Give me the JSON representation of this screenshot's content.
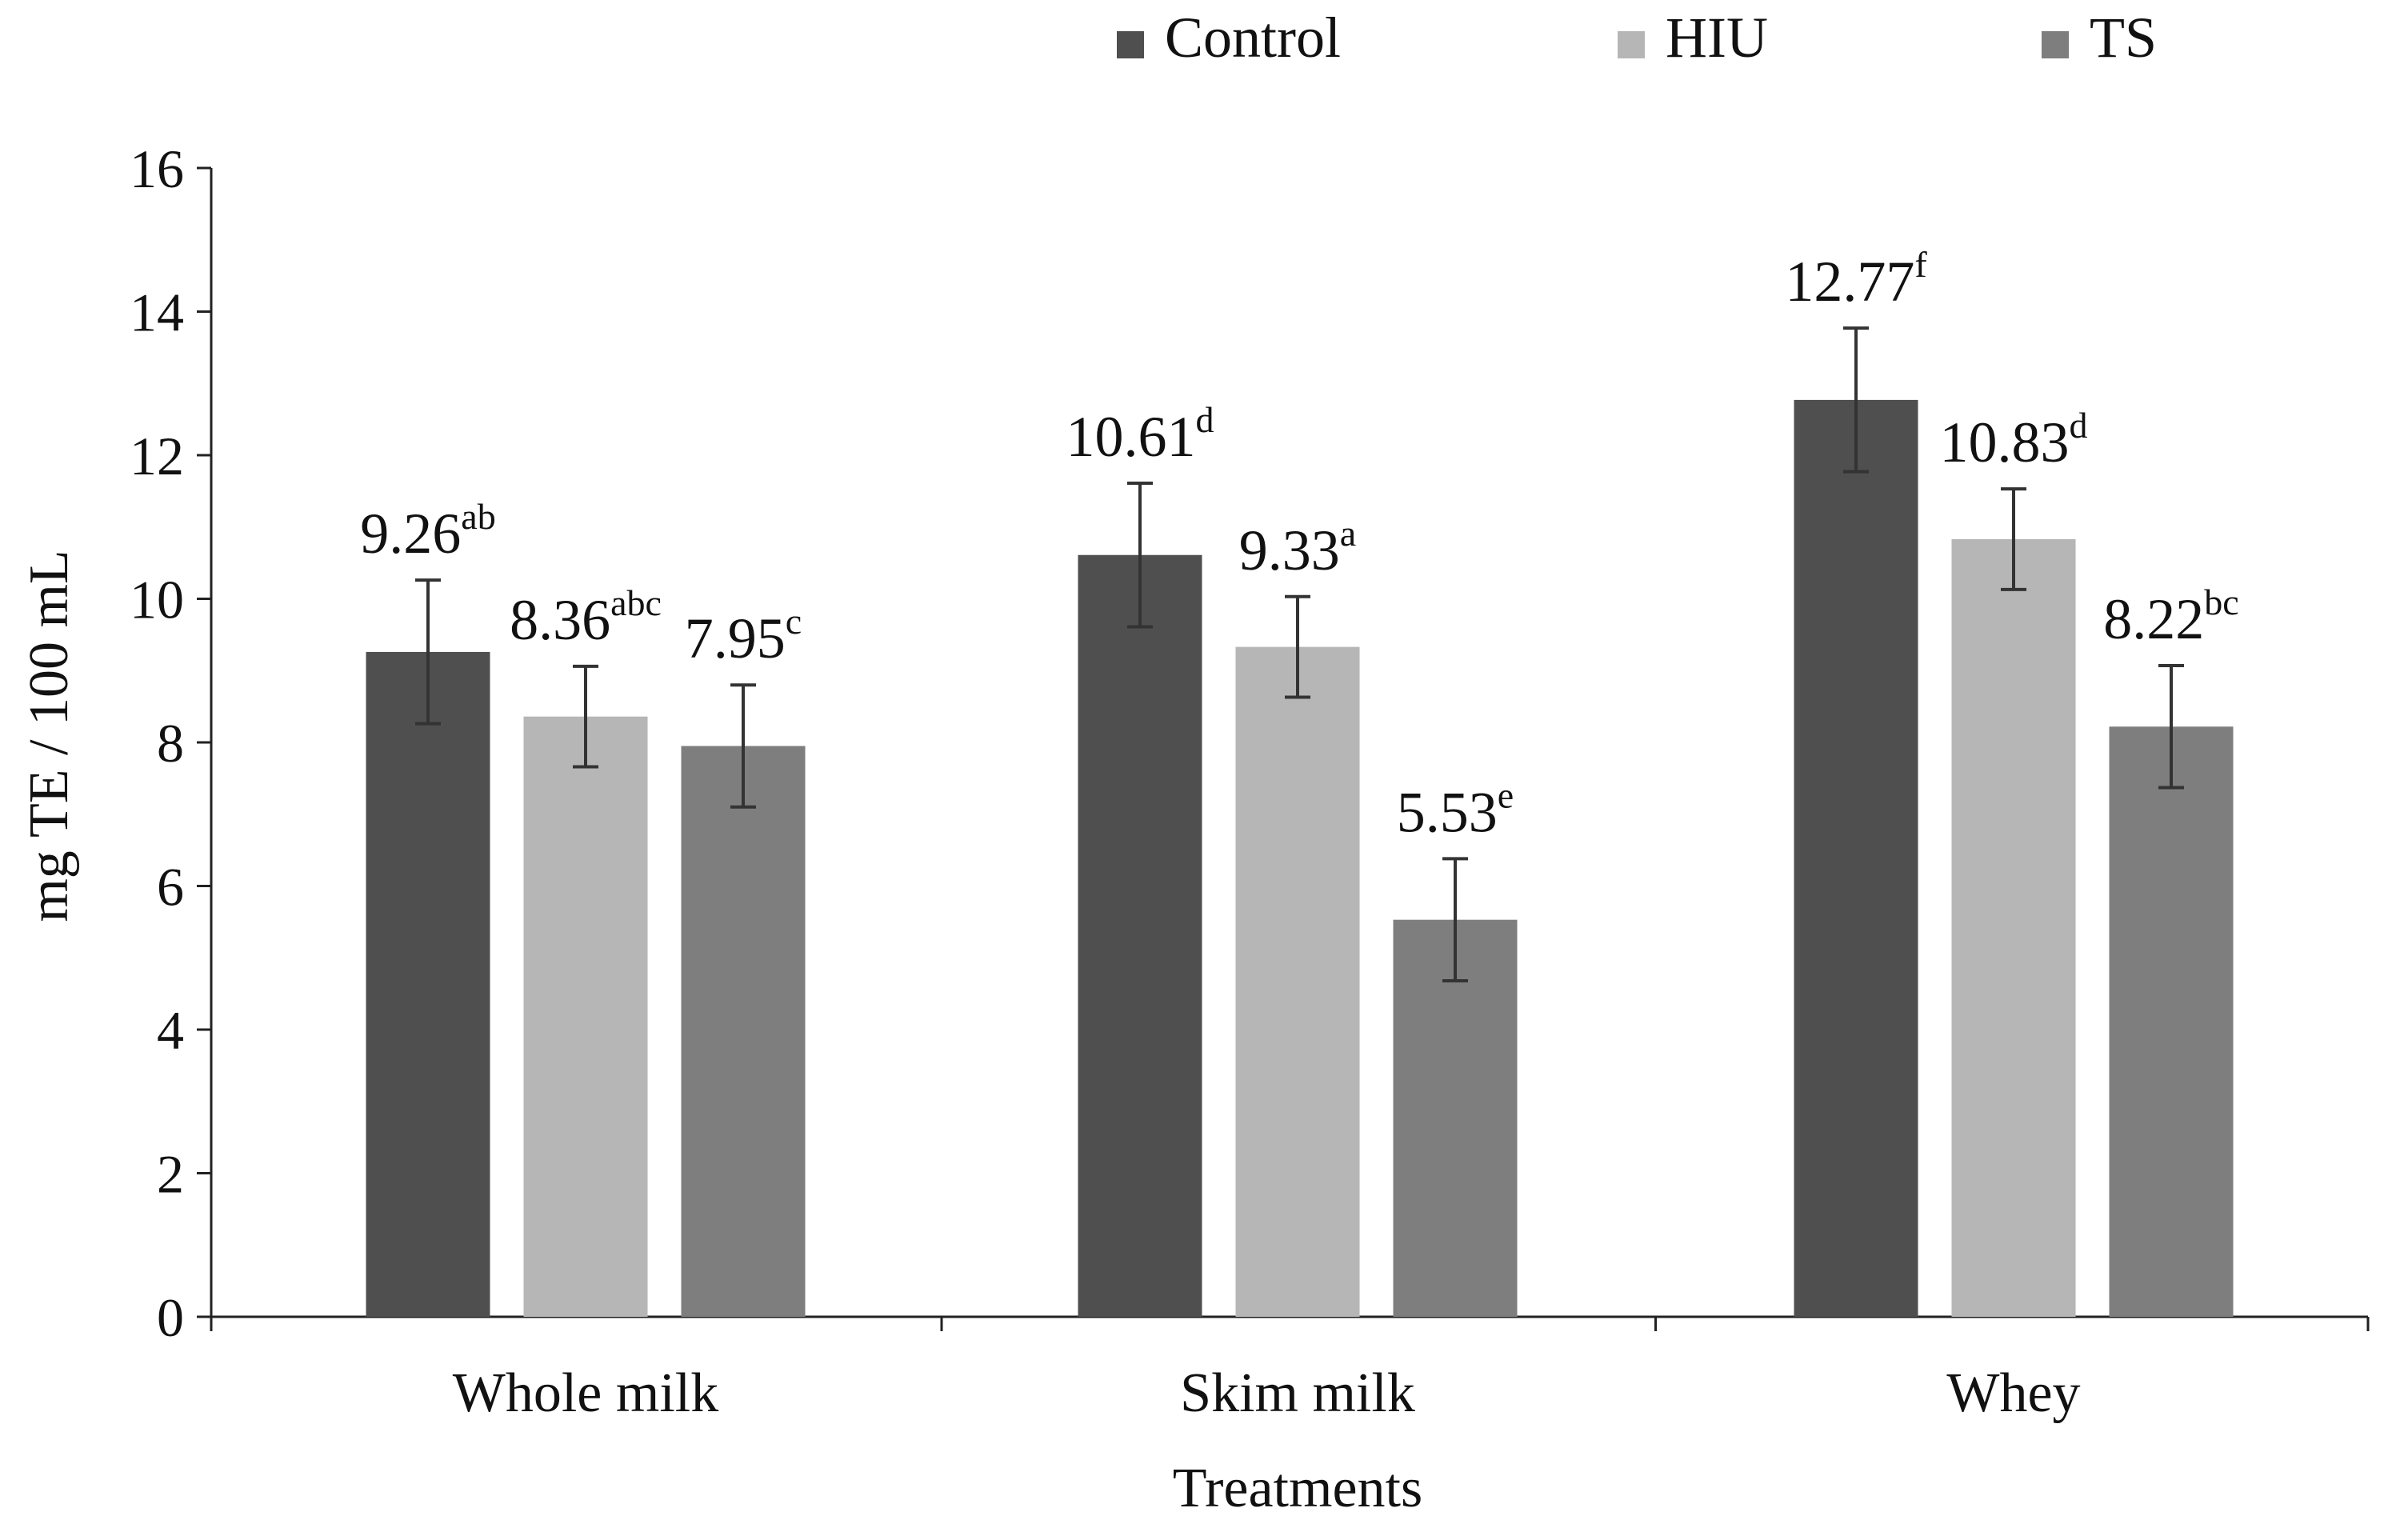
{
  "chart_data": {
    "type": "bar",
    "title": "",
    "xlabel": "Treatments",
    "ylabel": "mg TE / 100 mL",
    "ylim": [
      0,
      16
    ],
    "yticks": [
      0,
      2,
      4,
      6,
      8,
      10,
      12,
      14,
      16
    ],
    "grid": false,
    "legend_position": "top",
    "categories": [
      "Whole milk",
      "Skim milk",
      "Whey"
    ],
    "series": [
      {
        "name": "Control",
        "color": "#4f4f4f",
        "values": [
          9.26,
          10.61,
          12.77
        ],
        "errors": [
          1.0,
          1.0,
          1.0
        ],
        "labels": [
          "9.26",
          "10.61",
          "12.77"
        ],
        "superscripts": [
          "ab",
          "d",
          "f"
        ]
      },
      {
        "name": "HIU",
        "color": "#b6b6b6",
        "values": [
          8.36,
          9.33,
          10.83
        ],
        "errors": [
          0.7,
          0.7,
          0.7
        ],
        "labels": [
          "8.36",
          "9.33",
          "10.83"
        ],
        "superscripts": [
          "abc",
          "a",
          "d"
        ]
      },
      {
        "name": "TS",
        "color": "#7e7e7e",
        "values": [
          7.95,
          5.53,
          8.22
        ],
        "errors": [
          0.85,
          0.85,
          0.85
        ],
        "labels": [
          "7.95",
          "5.53",
          "8.22"
        ],
        "superscripts": [
          "c",
          "e",
          "bc"
        ]
      }
    ]
  }
}
